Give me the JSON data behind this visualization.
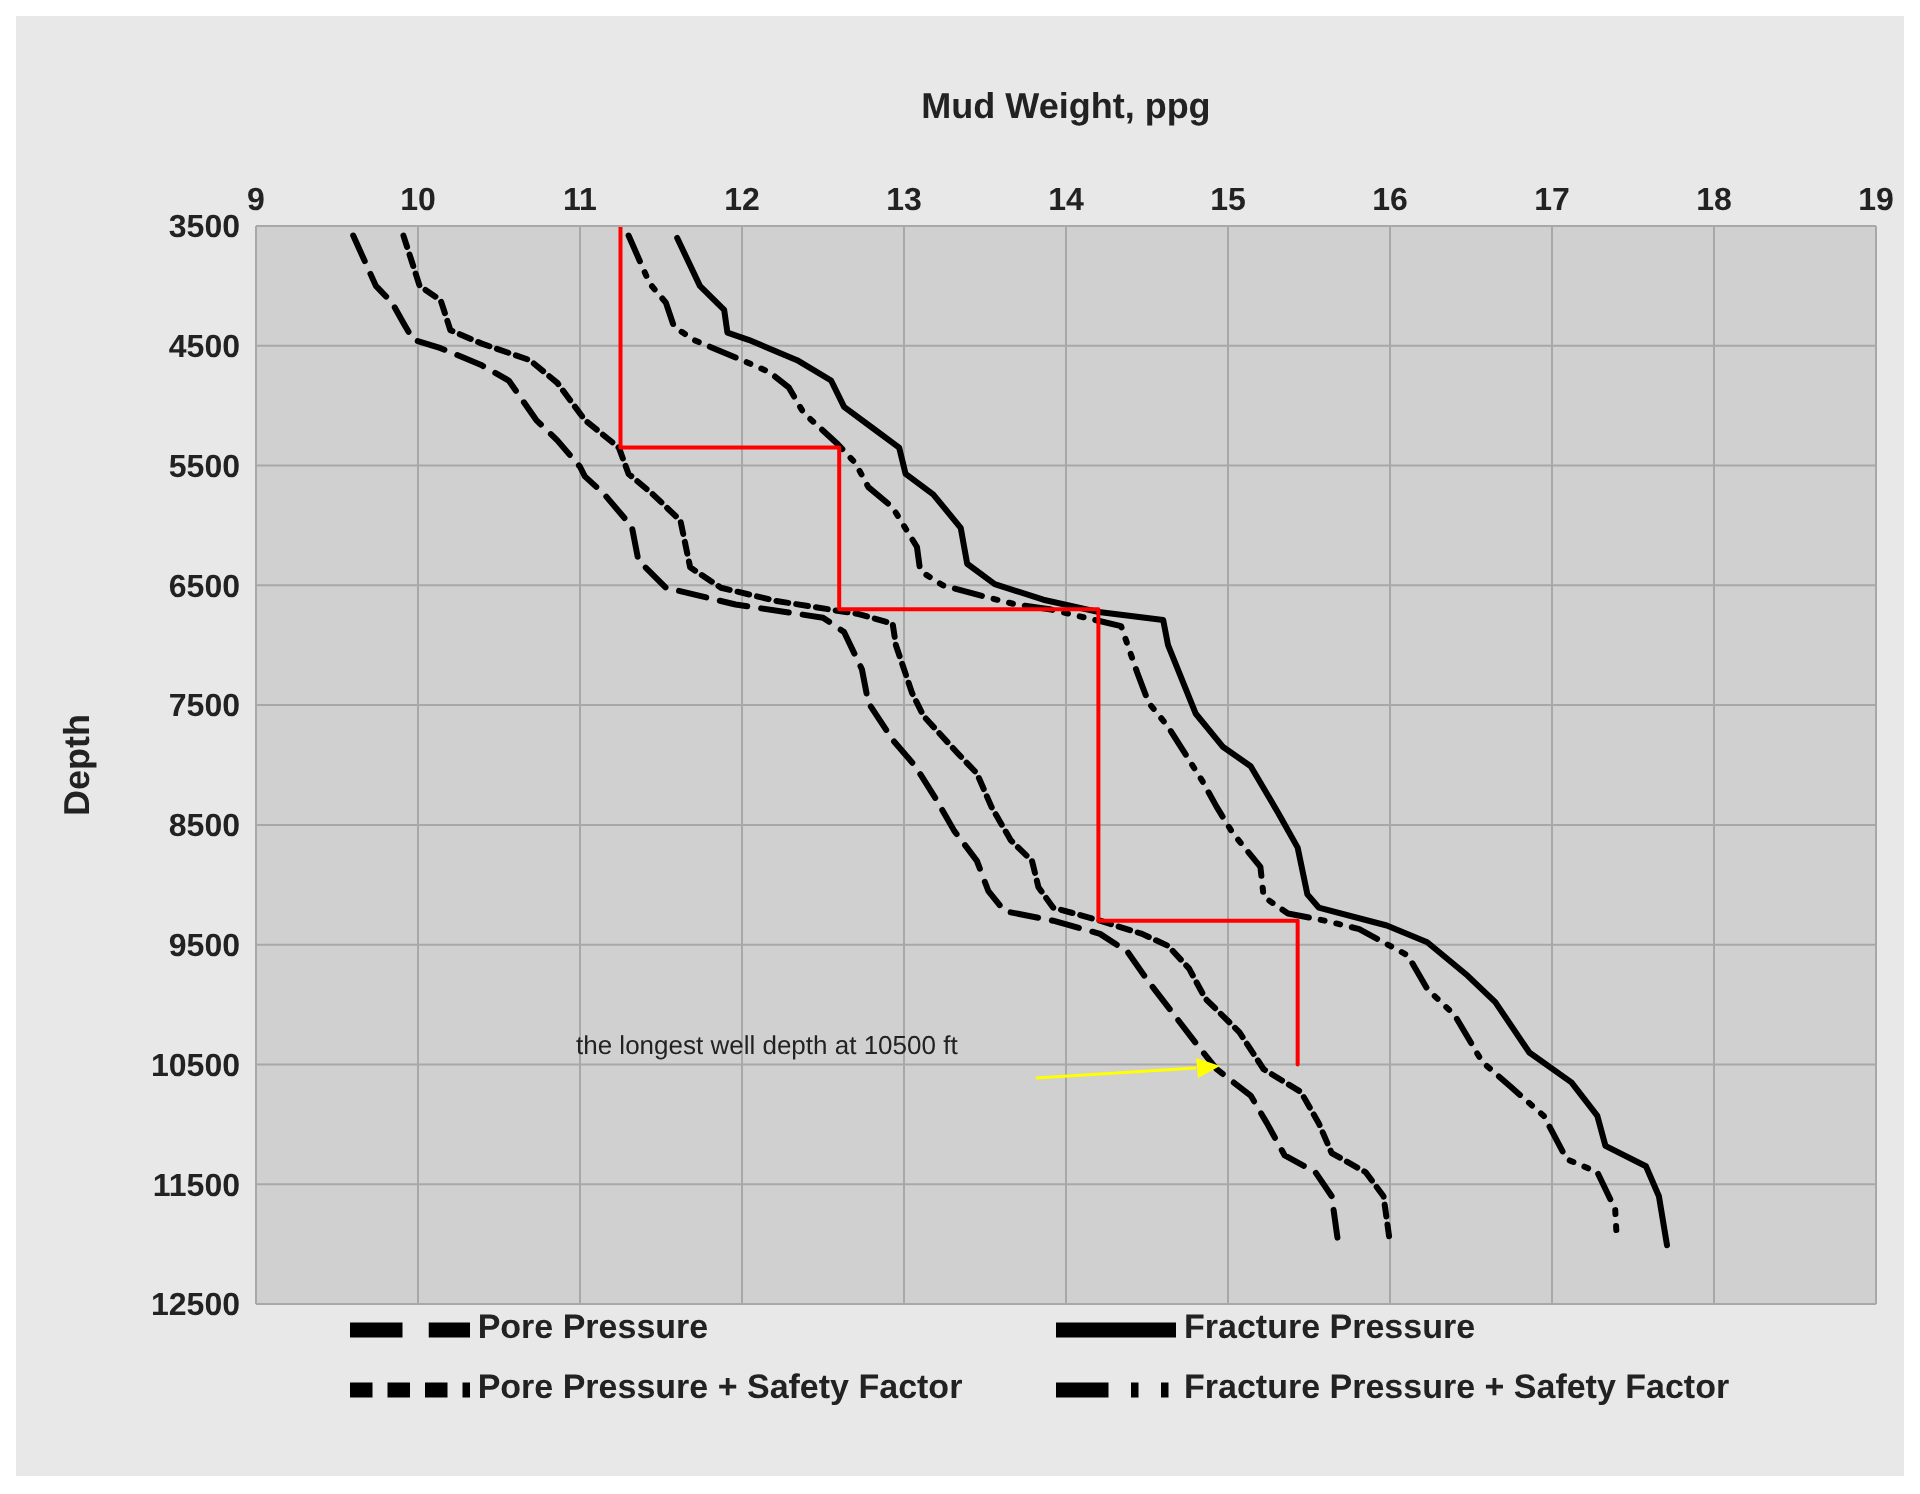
{
  "chart_data": {
    "type": "line",
    "xlabel": "Mud Weight, ppg",
    "ylabel": "Depth",
    "xlim": [
      9,
      19
    ],
    "xticks": [
      9,
      10,
      11,
      12,
      13,
      14,
      15,
      16,
      17,
      18,
      19
    ],
    "ylim": [
      12500,
      3500
    ],
    "yticks": [
      3500,
      4500,
      5500,
      6500,
      7500,
      8500,
      9500,
      10500,
      11500,
      12500
    ],
    "grid": true,
    "legend": "bottom",
    "marker": "none",
    "annotations": [
      "the longest well depth at 10500 ft"
    ],
    "series": [
      {
        "name": "Pore Pressure",
        "color": "#000000",
        "line_style": "dashed",
        "x": [
          9.6,
          9.74,
          9.84,
          9.91,
          9.97,
          10.14,
          10.39,
          10.56,
          10.73,
          10.86,
          11.0,
          11.03,
          11.15,
          11.32,
          11.36,
          11.53,
          11.96,
          12.5,
          12.63,
          12.74,
          12.78,
          12.93,
          13.07,
          13.2,
          13.31,
          13.45,
          13.52,
          13.62,
          13.92,
          14.21,
          14.38,
          14.51,
          14.67,
          14.8,
          14.93,
          15.14,
          15.24,
          15.35,
          15.54,
          15.64,
          15.68
        ],
        "values": [
          3580,
          4000,
          4140,
          4310,
          4450,
          4520,
          4660,
          4790,
          5120,
          5290,
          5510,
          5590,
          5740,
          6010,
          6290,
          6520,
          6660,
          6770,
          6890,
          7200,
          7480,
          7790,
          8010,
          8290,
          8550,
          8800,
          9050,
          9220,
          9300,
          9410,
          9560,
          9810,
          10090,
          10320,
          10540,
          10760,
          10990,
          11260,
          11400,
          11600,
          11990
        ]
      },
      {
        "name": "Fracture Pressure",
        "color": "#000000",
        "line_style": "solid",
        "x": [
          11.6,
          11.74,
          11.89,
          11.91,
          12.04,
          12.34,
          12.55,
          12.63,
          12.8,
          12.97,
          13.01,
          13.18,
          13.35,
          13.39,
          13.56,
          13.86,
          14.19,
          14.6,
          14.63,
          14.8,
          14.97,
          15.14,
          15.31,
          15.43,
          15.49,
          15.56,
          15.98,
          16.23,
          16.48,
          16.65,
          16.86,
          17.12,
          17.28,
          17.33,
          17.58,
          17.66,
          17.71
        ],
        "values": [
          3600,
          4000,
          4200,
          4390,
          4450,
          4620,
          4790,
          5010,
          5180,
          5350,
          5570,
          5740,
          6020,
          6320,
          6490,
          6620,
          6720,
          6790,
          7000,
          7570,
          7850,
          8010,
          8400,
          8690,
          9080,
          9190,
          9340,
          9480,
          9760,
          9980,
          10400,
          10650,
          10930,
          11180,
          11350,
          11600,
          12010
        ]
      },
      {
        "name": "Pore Pressure + Safety Factor",
        "color": "#000000",
        "line_style": "dotted",
        "x": [
          9.91,
          10.01,
          10.14,
          10.2,
          10.39,
          10.69,
          10.86,
          11.03,
          11.24,
          11.3,
          11.45,
          11.62,
          11.68,
          11.87,
          12.21,
          12.72,
          12.93,
          12.95,
          13.05,
          13.12,
          13.33,
          13.45,
          13.54,
          13.66,
          13.79,
          13.83,
          13.92,
          14.21,
          14.47,
          14.63,
          14.76,
          14.86,
          15.07,
          15.22,
          15.45,
          15.56,
          15.64,
          15.85,
          15.96,
          16.0
        ],
        "values": [
          3580,
          4000,
          4120,
          4370,
          4480,
          4620,
          4810,
          5120,
          5350,
          5570,
          5740,
          5960,
          6350,
          6520,
          6630,
          6740,
          6820,
          7000,
          7400,
          7590,
          7900,
          8070,
          8350,
          8630,
          8800,
          9020,
          9190,
          9300,
          9410,
          9510,
          9700,
          9950,
          10230,
          10540,
          10730,
          10990,
          11240,
          11400,
          11600,
          11990
        ]
      },
      {
        "name": "Fracture Pressure + Safety Factor",
        "color": "#000000",
        "line_style": "dashdot",
        "x": [
          11.3,
          11.43,
          11.53,
          11.58,
          11.7,
          12.0,
          12.17,
          12.29,
          12.38,
          12.59,
          12.7,
          12.78,
          12.93,
          13.08,
          13.1,
          13.24,
          13.43,
          13.69,
          13.9,
          14.34,
          14.44,
          14.51,
          14.63,
          14.84,
          14.93,
          15.03,
          15.2,
          15.22,
          15.37,
          15.6,
          15.81,
          16.11,
          16.23,
          16.4,
          16.57,
          16.74,
          16.95,
          17.09,
          17.28,
          17.39,
          17.4
        ],
        "values": [
          3580,
          3980,
          4140,
          4340,
          4450,
          4620,
          4720,
          4850,
          5060,
          5320,
          5480,
          5680,
          5850,
          6180,
          6380,
          6500,
          6570,
          6660,
          6700,
          6840,
          7230,
          7480,
          7680,
          8130,
          8350,
          8570,
          8850,
          9100,
          9240,
          9300,
          9370,
          9590,
          9870,
          10090,
          10480,
          10680,
          10930,
          11290,
          11400,
          11710,
          11960
        ]
      },
      {
        "color": "#ff0000",
        "line_style": "solid",
        "x": [
          11.25,
          11.25,
          12.6,
          12.6,
          14.2,
          14.2,
          15.43,
          15.43
        ],
        "values": [
          3500,
          5350,
          5350,
          6700,
          6700,
          9300,
          9300,
          10500
        ]
      }
    ]
  }
}
